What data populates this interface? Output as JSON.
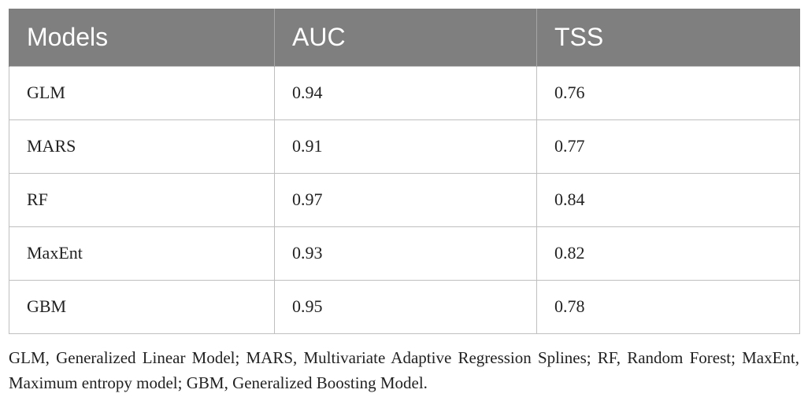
{
  "table": {
    "headers": [
      "Models",
      "AUC",
      "TSS"
    ],
    "rows": [
      [
        "GLM",
        "0.94",
        "0.76"
      ],
      [
        "MARS",
        "0.91",
        "0.77"
      ],
      [
        "RF",
        "0.97",
        "0.84"
      ],
      [
        "MaxEnt",
        "0.93",
        "0.82"
      ],
      [
        "GBM",
        "0.95",
        "0.78"
      ]
    ],
    "header_bg": "#7f7f7f",
    "header_text_color": "#ffffff",
    "border_color": "#bfbfbf"
  },
  "footnote": "GLM, Generalized Linear Model; MARS, Multivariate Adaptive Regression Splines; RF, Random Forest; MaxEnt, Maximum entropy model; GBM, Generalized Boosting Model."
}
